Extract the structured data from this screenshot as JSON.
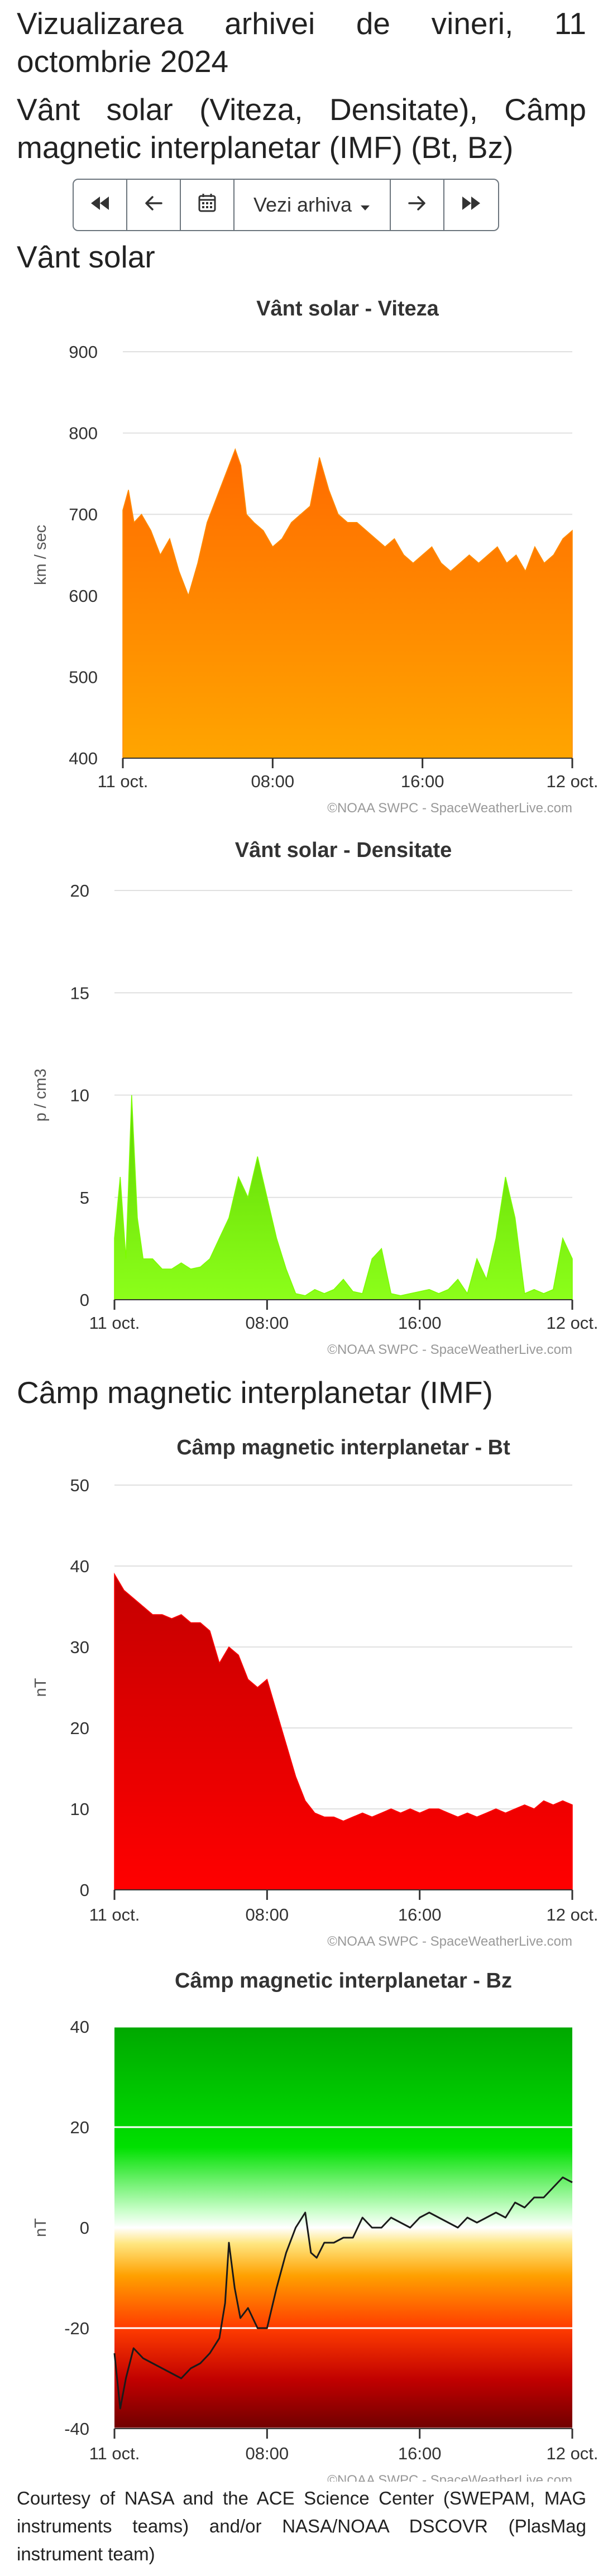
{
  "header": {
    "title": "Vizualizarea arhivei de vineri, 11 octombrie 2024",
    "subtitle": "Vânt solar (Viteza, Densitate), Câmp magnetic interplanetar (IMF) (Bt, Bz)"
  },
  "nav": {
    "first_icon": "double-arrow-left-icon",
    "prev_icon": "arrow-left-icon",
    "calendar_icon": "calendar-icon",
    "archive_label": "Vezi arhiva",
    "next_icon": "arrow-right-icon",
    "last_icon": "double-arrow-right-icon"
  },
  "sections": {
    "solar_wind": "Vânt solar",
    "imf": "Câmp magnetic interplanetar (IMF)"
  },
  "credit": "©NOAA SWPC - SpaceWeatherLive.com",
  "footer": "Courtesy of NASA and the ACE Science Center (SWEPAM, MAG instruments teams) and/or NASA/NOAA DSCOVR (PlasMag instrument team)",
  "chart_data": [
    {
      "type": "area",
      "title": "Vânt solar - Viteza",
      "ylabel": "km / sec",
      "ylim": [
        400,
        900
      ],
      "yticks": [
        "400",
        "500",
        "600",
        "700",
        "800",
        "900"
      ],
      "xticks": [
        "11 oct.",
        "08:00",
        "16:00",
        "12 oct."
      ],
      "xlim_hours": [
        0,
        24
      ],
      "color": "#ff8c00",
      "x": [
        0,
        0.3,
        0.6,
        1,
        1.5,
        2,
        2.5,
        3,
        3.5,
        4,
        4.5,
        5,
        5.5,
        6,
        6.3,
        6.6,
        7,
        7.5,
        8,
        8.5,
        9,
        9.5,
        10,
        10.5,
        11,
        11.5,
        12,
        12.5,
        13,
        13.5,
        14,
        14.5,
        15,
        15.5,
        16,
        16.5,
        17,
        17.5,
        18,
        18.5,
        19,
        19.5,
        20,
        20.5,
        21,
        21.5,
        22,
        22.5,
        23,
        23.5,
        24
      ],
      "values": [
        705,
        730,
        690,
        700,
        680,
        650,
        670,
        630,
        600,
        640,
        690,
        720,
        750,
        780,
        760,
        700,
        690,
        680,
        660,
        670,
        690,
        700,
        710,
        770,
        730,
        700,
        690,
        690,
        680,
        670,
        660,
        670,
        650,
        640,
        650,
        660,
        640,
        630,
        640,
        650,
        640,
        650,
        660,
        640,
        650,
        630,
        660,
        640,
        650,
        670,
        680
      ]
    },
    {
      "type": "area",
      "title": "Vânt solar - Densitate",
      "ylabel": "p / cm3",
      "ylim": [
        0,
        20
      ],
      "yticks": [
        "0",
        "5",
        "10",
        "15",
        "20"
      ],
      "xticks": [
        "11 oct.",
        "08:00",
        "16:00",
        "12 oct."
      ],
      "xlim_hours": [
        0,
        24
      ],
      "color": "#7cfc00",
      "x": [
        0,
        0.3,
        0.6,
        0.9,
        1.2,
        1.5,
        2,
        2.5,
        3,
        3.5,
        4,
        4.5,
        5,
        5.5,
        6,
        6.5,
        7,
        7.5,
        8,
        8.5,
        9,
        9.5,
        10,
        10.5,
        11,
        11.5,
        12,
        12.5,
        13,
        13.5,
        14,
        14.5,
        15,
        15.5,
        16,
        16.5,
        17,
        17.5,
        18,
        18.5,
        19,
        19.5,
        20,
        20.5,
        21,
        21.5,
        22,
        22.5,
        23,
        23.5,
        24
      ],
      "values": [
        3,
        6,
        2,
        10,
        4,
        2,
        2,
        1.5,
        1.5,
        1.8,
        1.5,
        1.6,
        2,
        3,
        4,
        6,
        5,
        7,
        5,
        3,
        1.5,
        0.3,
        0.2,
        0.5,
        0.3,
        0.5,
        1,
        0.4,
        0.3,
        2,
        2.5,
        0.3,
        0.2,
        0.3,
        0.4,
        0.5,
        0.3,
        0.5,
        1,
        0.3,
        2,
        1,
        3,
        6,
        4,
        0.3,
        0.5,
        0.3,
        0.5,
        3,
        2
      ]
    },
    {
      "type": "area",
      "title": "Câmp magnetic interplanetar - Bt",
      "ylabel": "nT",
      "ylim": [
        0,
        50
      ],
      "yticks": [
        "0",
        "10",
        "20",
        "30",
        "40",
        "50"
      ],
      "xticks": [
        "11 oct.",
        "08:00",
        "16:00",
        "12 oct."
      ],
      "xlim_hours": [
        0,
        24
      ],
      "color": "#ff0000",
      "x": [
        0,
        0.5,
        1,
        1.5,
        2,
        2.5,
        3,
        3.5,
        4,
        4.5,
        5,
        5.5,
        6,
        6.5,
        7,
        7.5,
        8,
        8.5,
        9,
        9.5,
        10,
        10.5,
        11,
        11.5,
        12,
        12.5,
        13,
        13.5,
        14,
        14.5,
        15,
        15.5,
        16,
        16.5,
        17,
        17.5,
        18,
        18.5,
        19,
        19.5,
        20,
        20.5,
        21,
        21.5,
        22,
        22.5,
        23,
        23.5,
        24
      ],
      "values": [
        39,
        37,
        36,
        35,
        34,
        34,
        33.5,
        34,
        33,
        33,
        32,
        28,
        30,
        29,
        26,
        25,
        26,
        22,
        18,
        14,
        11,
        9.5,
        9,
        9,
        8.5,
        9,
        9.5,
        9,
        9.5,
        10,
        9.5,
        10,
        9.5,
        10,
        10,
        9.5,
        9,
        9.5,
        9,
        9.5,
        10,
        9.5,
        10,
        10.5,
        10,
        11,
        10.5,
        11,
        10.5
      ]
    },
    {
      "type": "line",
      "title": "Câmp magnetic interplanetar - Bz",
      "ylabel": "nT",
      "ylim": [
        -40,
        40
      ],
      "yticks": [
        "-40",
        "-20",
        "0",
        "20",
        "40"
      ],
      "xticks": [
        "11 oct.",
        "08:00",
        "16:00",
        "12 oct."
      ],
      "xlim_hours": [
        0,
        24
      ],
      "x": [
        0,
        0.3,
        0.6,
        1,
        1.5,
        2,
        2.5,
        3,
        3.5,
        4,
        4.5,
        5,
        5.5,
        5.8,
        6,
        6.3,
        6.6,
        7,
        7.5,
        8,
        8.5,
        9,
        9.5,
        10,
        10.3,
        10.6,
        11,
        11.5,
        12,
        12.5,
        13,
        13.5,
        14,
        14.5,
        15,
        15.5,
        16,
        16.5,
        17,
        17.5,
        18,
        18.5,
        19,
        19.5,
        20,
        20.5,
        21,
        21.5,
        22,
        22.5,
        23,
        23.5,
        24
      ],
      "values": [
        -25,
        -36,
        -30,
        -24,
        -26,
        -27,
        -28,
        -29,
        -30,
        -28,
        -27,
        -25,
        -22,
        -15,
        -3,
        -12,
        -18,
        -16,
        -20,
        -20,
        -12,
        -5,
        0,
        3,
        -5,
        -6,
        -3,
        -3,
        -2,
        -2,
        2,
        0,
        0,
        2,
        1,
        0,
        2,
        3,
        2,
        1,
        0,
        2,
        1,
        2,
        3,
        2,
        5,
        4,
        6,
        6,
        8,
        10,
        9
      ]
    }
  ]
}
